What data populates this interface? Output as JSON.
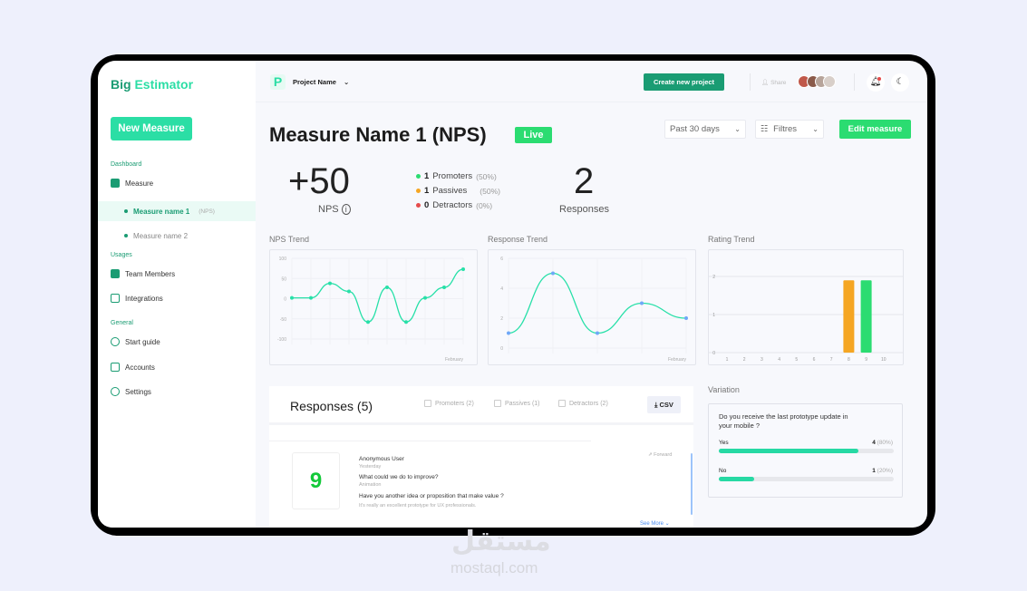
{
  "app": {
    "brand_1": "Big",
    "brand_2": "Estimator",
    "new_measure": "New Measure"
  },
  "sidebar": {
    "sections": [
      {
        "label": "Dashboard"
      },
      {
        "label": "Usages"
      },
      {
        "label": "General"
      }
    ],
    "items": [
      {
        "label": "Measure",
        "icon": "chart-icon"
      },
      {
        "label": "Team Members",
        "icon": "user-icon"
      },
      {
        "label": "Integrations",
        "icon": "calendar-icon"
      },
      {
        "label": "Start guide",
        "icon": "guide-icon"
      },
      {
        "label": "Accounts",
        "icon": "accounts-icon"
      },
      {
        "label": "Settings",
        "icon": "gear-icon"
      }
    ],
    "measures": [
      {
        "label": "Measure name 1",
        "tag": "(NPS)",
        "active": true
      },
      {
        "label": "Measure name 2",
        "tag": ""
      }
    ]
  },
  "header": {
    "project_letter": "P",
    "project_name": "Project Name",
    "create_project": "Create new project",
    "share": "Share"
  },
  "page": {
    "title": "Measure Name 1 (NPS)",
    "status": "Live",
    "period": "Past 30 days",
    "filters": "Filtres",
    "edit": "Edit measure"
  },
  "stats": {
    "nps_value": "+50",
    "nps_label": "NPS",
    "responses_value": "2",
    "responses_label": "Responses",
    "breakdown": [
      {
        "count": "1",
        "label": "Promoters",
        "pct": "(50%)",
        "color": "#2bdc71"
      },
      {
        "count": "1",
        "label": "Passives",
        "pct": "(50%)",
        "color": "#f5a623"
      },
      {
        "count": "0",
        "label": "Detractors",
        "pct": "(0%)",
        "color": "#e54b4b"
      }
    ]
  },
  "chart_data": [
    {
      "type": "line",
      "title": "NPS Trend",
      "xlabel": "February",
      "y_ticks": [
        "100",
        "50",
        "0",
        "-50",
        "-100"
      ],
      "ylim": [
        -100,
        100
      ],
      "values": [
        2,
        2,
        38,
        18,
        -58,
        28,
        -58,
        2,
        28,
        73
      ],
      "color": "#27e0a8",
      "grid": true
    },
    {
      "type": "line",
      "title": "Response Trend",
      "xlabel": "February",
      "y_ticks": [
        "6",
        "4",
        "2",
        "0"
      ],
      "ylim": [
        0,
        6
      ],
      "values": [
        1,
        5,
        1,
        3,
        2
      ],
      "color": "#27e0a8",
      "point_color": "#6ea8f7",
      "grid": true
    },
    {
      "type": "bar",
      "title": "Rating Trend",
      "categories": [
        "1",
        "2",
        "3",
        "4",
        "5",
        "6",
        "7",
        "8",
        "9",
        "10"
      ],
      "values": [
        0,
        0,
        0,
        0,
        0,
        0,
        0,
        1.9,
        1.9,
        0
      ],
      "colors": {
        "8": "#f5a623",
        "9": "#2bdc71"
      },
      "y_ticks": [
        "2",
        "1",
        "0"
      ],
      "ylim": [
        0,
        2
      ],
      "grid": true
    }
  ],
  "responses": {
    "title": "Responses (5)",
    "filters": [
      {
        "label": "Promoters (2)"
      },
      {
        "label": "Passives (1)"
      },
      {
        "label": "Detractors (2)"
      }
    ],
    "csv": "CSV",
    "item": {
      "score": "9",
      "user": "Anonymous User",
      "time": "Yesterday",
      "forward": "Forward",
      "q1": "What could we do to improve?",
      "a1": "Animation",
      "q2": "Have you another idea or proposition that make value ?",
      "a2": "It's really an excellent prototype for UX professionals.",
      "see_more": "See More"
    }
  },
  "variation": {
    "title": "Variation",
    "question": "Do you receive the last prototype update in your mobile ?",
    "options": [
      {
        "label": "Yes",
        "count": "4",
        "pct": "(80%)",
        "value": 80
      },
      {
        "label": "No",
        "count": "1",
        "pct": "(20%)",
        "value": 20
      }
    ]
  },
  "watermark": {
    "logo": "مستقل",
    "site": "mostaql.com"
  }
}
